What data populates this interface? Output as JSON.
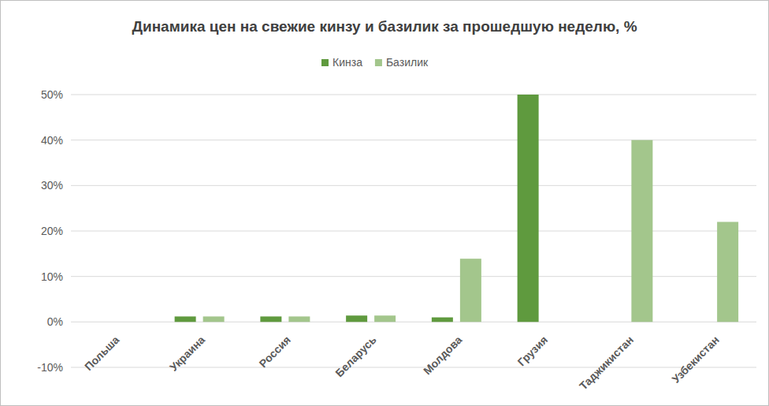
{
  "chart_data": {
    "type": "bar",
    "title": "Динамика цен на свежие кинзу и базилик за прошедшую неделю, %",
    "categories": [
      "Польша",
      "Украина",
      "Россия",
      "Беларусь",
      "Молдова",
      "Грузия",
      "Таджикистан",
      "Узбекистан"
    ],
    "series": [
      {
        "name": "Кинза",
        "color": "#5f9a3e",
        "values": [
          0,
          1.2,
          1.2,
          1.4,
          1.0,
          50,
          0,
          0
        ]
      },
      {
        "name": "Базилик",
        "color": "#a3c68c",
        "values": [
          0,
          1.2,
          1.2,
          1.4,
          13.9,
          0,
          40,
          22
        ]
      }
    ],
    "ylim": [
      -10,
      50
    ],
    "yticks": [
      {
        "value": -10,
        "label": "-10%"
      },
      {
        "value": 0,
        "label": "0%"
      },
      {
        "value": 10,
        "label": "10%"
      },
      {
        "value": 20,
        "label": "20%"
      },
      {
        "value": 30,
        "label": "30%"
      },
      {
        "value": 40,
        "label": "40%"
      },
      {
        "value": 50,
        "label": "50%"
      }
    ],
    "grid": true,
    "legend": "top"
  }
}
